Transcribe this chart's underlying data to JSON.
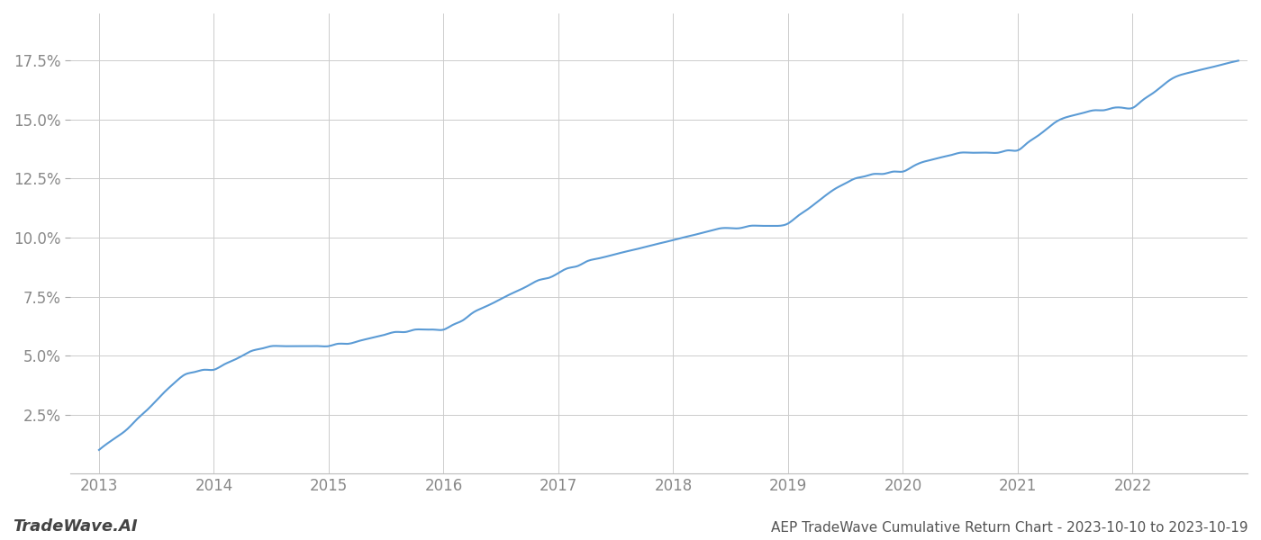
{
  "title": "AEP TradeWave Cumulative Return Chart - 2023-10-10 to 2023-10-19",
  "watermark": "TradeWave.AI",
  "line_color": "#5b9bd5",
  "background_color": "#ffffff",
  "grid_color": "#cccccc",
  "x_data": [
    2013.0,
    2013.08,
    2013.17,
    2013.25,
    2013.33,
    2013.42,
    2013.5,
    2013.58,
    2013.67,
    2013.75,
    2013.83,
    2013.92,
    2014.0,
    2014.08,
    2014.17,
    2014.25,
    2014.33,
    2014.42,
    2014.5,
    2014.58,
    2014.67,
    2014.75,
    2014.83,
    2014.92,
    2015.0,
    2015.08,
    2015.17,
    2015.25,
    2015.33,
    2015.42,
    2015.5,
    2015.58,
    2015.67,
    2015.75,
    2015.83,
    2015.92,
    2016.0,
    2016.08,
    2016.17,
    2016.25,
    2016.33,
    2016.42,
    2016.5,
    2016.58,
    2016.67,
    2016.75,
    2016.83,
    2016.92,
    2017.0,
    2017.08,
    2017.17,
    2017.25,
    2017.33,
    2017.42,
    2017.5,
    2017.58,
    2017.67,
    2017.75,
    2017.83,
    2017.92,
    2018.0,
    2018.08,
    2018.17,
    2018.25,
    2018.33,
    2018.42,
    2018.5,
    2018.58,
    2018.67,
    2018.75,
    2018.83,
    2018.92,
    2019.0,
    2019.08,
    2019.17,
    2019.25,
    2019.33,
    2019.42,
    2019.5,
    2019.58,
    2019.67,
    2019.75,
    2019.83,
    2019.92,
    2020.0,
    2020.08,
    2020.17,
    2020.25,
    2020.33,
    2020.42,
    2020.5,
    2020.58,
    2020.67,
    2020.75,
    2020.83,
    2020.92,
    2021.0,
    2021.08,
    2021.17,
    2021.25,
    2021.33,
    2021.42,
    2021.5,
    2021.58,
    2021.67,
    2021.75,
    2021.83,
    2021.92,
    2022.0,
    2022.08,
    2022.17,
    2022.25,
    2022.33,
    2022.42,
    2022.5,
    2022.58,
    2022.67,
    2022.75,
    2022.83,
    2022.92
  ],
  "y_data": [
    0.01,
    0.013,
    0.016,
    0.019,
    0.023,
    0.027,
    0.031,
    0.035,
    0.039,
    0.042,
    0.043,
    0.044,
    0.044,
    0.046,
    0.048,
    0.05,
    0.052,
    0.053,
    0.054,
    0.054,
    0.054,
    0.054,
    0.054,
    0.054,
    0.054,
    0.055,
    0.055,
    0.056,
    0.057,
    0.058,
    0.059,
    0.06,
    0.06,
    0.061,
    0.061,
    0.061,
    0.061,
    0.063,
    0.065,
    0.068,
    0.07,
    0.072,
    0.074,
    0.076,
    0.078,
    0.08,
    0.082,
    0.083,
    0.085,
    0.087,
    0.088,
    0.09,
    0.091,
    0.092,
    0.093,
    0.094,
    0.095,
    0.096,
    0.097,
    0.098,
    0.099,
    0.1,
    0.101,
    0.102,
    0.103,
    0.104,
    0.104,
    0.104,
    0.105,
    0.105,
    0.105,
    0.105,
    0.106,
    0.109,
    0.112,
    0.115,
    0.118,
    0.121,
    0.123,
    0.125,
    0.126,
    0.127,
    0.127,
    0.128,
    0.128,
    0.13,
    0.132,
    0.133,
    0.134,
    0.135,
    0.136,
    0.136,
    0.136,
    0.136,
    0.136,
    0.137,
    0.137,
    0.14,
    0.143,
    0.146,
    0.149,
    0.151,
    0.152,
    0.153,
    0.154,
    0.154,
    0.155,
    0.155,
    0.155,
    0.158,
    0.161,
    0.164,
    0.167,
    0.169,
    0.17,
    0.171,
    0.172,
    0.173,
    0.174,
    0.175
  ],
  "ylim": [
    0.0,
    0.195
  ],
  "xlim": [
    2012.75,
    2023.0
  ],
  "yticks": [
    0.025,
    0.05,
    0.075,
    0.1,
    0.125,
    0.15,
    0.175
  ],
  "ytick_labels": [
    "2.5%",
    "5.0%",
    "7.5%",
    "10.0%",
    "12.5%",
    "15.0%",
    "17.5%"
  ],
  "xtick_labels": [
    "2013",
    "2014",
    "2015",
    "2016",
    "2017",
    "2018",
    "2019",
    "2020",
    "2021",
    "2022"
  ],
  "xtick_values": [
    2013,
    2014,
    2015,
    2016,
    2017,
    2018,
    2019,
    2020,
    2021,
    2022
  ],
  "label_color": "#888888",
  "title_color": "#555555",
  "watermark_color": "#444444",
  "line_width": 1.5,
  "title_fontsize": 11,
  "tick_fontsize": 12,
  "watermark_fontsize": 13
}
